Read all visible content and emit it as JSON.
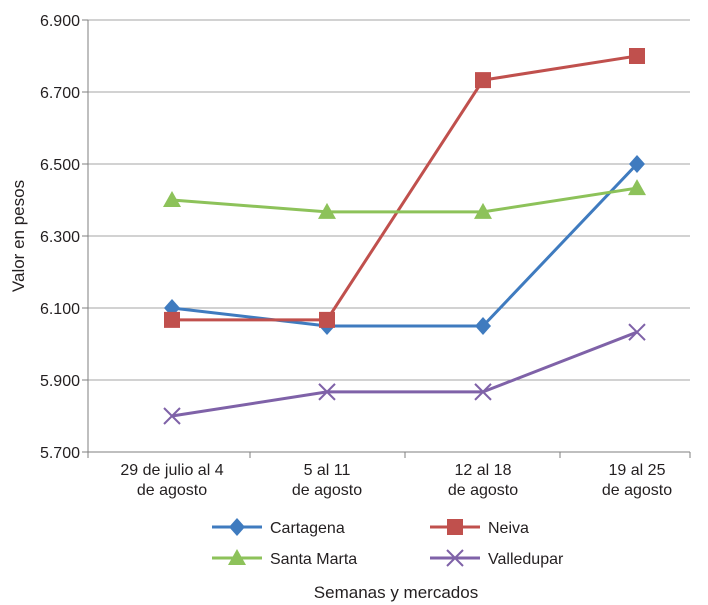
{
  "chart_data": {
    "type": "line",
    "title": "",
    "xlabel": "Semanas y mercados",
    "ylabel": "Valor en pesos",
    "categories": [
      [
        "29 de julio al 4",
        "de agosto"
      ],
      [
        "5 al 11",
        "de agosto"
      ],
      [
        "12 al 18",
        "de agosto"
      ],
      [
        "19 al 25",
        "de agosto"
      ]
    ],
    "ylim": [
      5700,
      6900
    ],
    "yticks": [
      5700,
      5900,
      6100,
      6300,
      6500,
      6700,
      6900
    ],
    "ytick_labels": [
      "5.700",
      "5.900",
      "6.100",
      "6.300",
      "6.500",
      "6.700",
      "6.900"
    ],
    "grid": "horizontal",
    "legend_position": "bottom",
    "series": [
      {
        "name": "Cartagena",
        "values": [
          6100,
          6050,
          6050,
          6500
        ],
        "color": "#3f7bbf",
        "marker": "diamond"
      },
      {
        "name": "Neiva",
        "values": [
          6067,
          6067,
          6733,
          6800
        ],
        "color": "#c0504d",
        "marker": "square"
      },
      {
        "name": "Santa Marta",
        "values": [
          6400,
          6367,
          6367,
          6433
        ],
        "color": "#8dc25a",
        "marker": "triangle"
      },
      {
        "name": "Valledupar",
        "values": [
          5800,
          5867,
          5867,
          6033
        ],
        "color": "#7f62a8",
        "marker": "x"
      }
    ]
  }
}
